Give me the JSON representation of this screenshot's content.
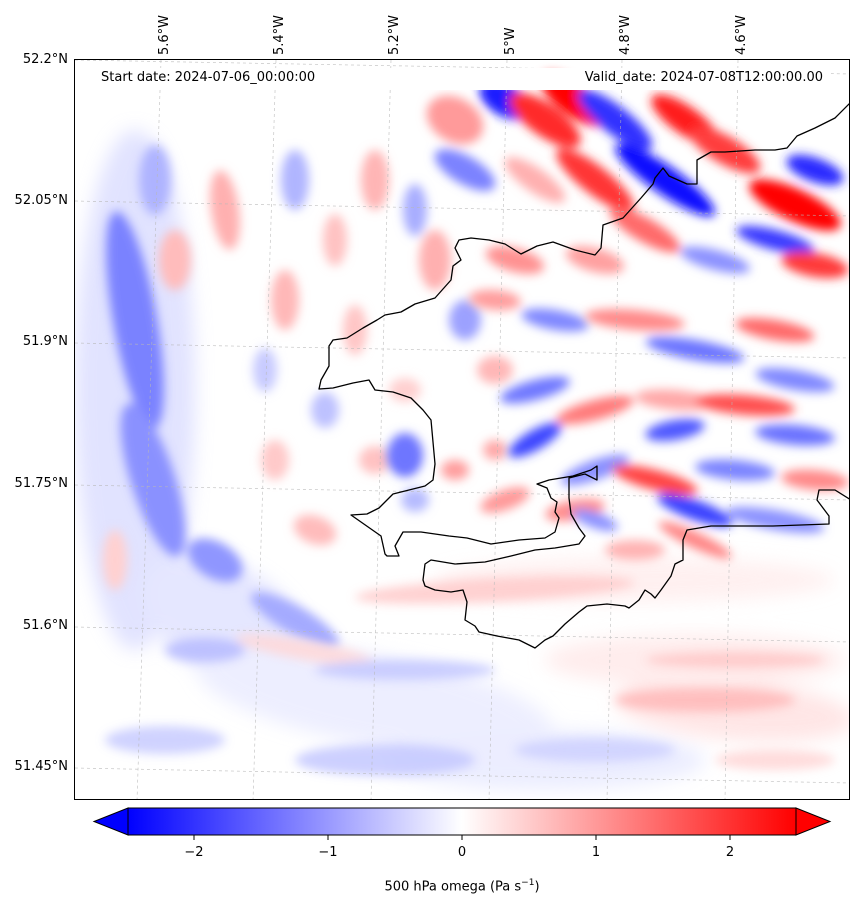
{
  "map": {
    "start_date": "Start date: 2024-07-06_00:00:00",
    "valid_date": "Valid_date: 2024-07-08T12:00:00.00",
    "longitude_labels": [
      "5.6°W",
      "5.4°W",
      "5.2°W",
      "5°W",
      "4.8°W",
      "4.6°W"
    ],
    "latitude_labels": [
      "52.2°N",
      "52.05°N",
      "51.9°N",
      "51.75°N",
      "51.6°N",
      "51.45°N"
    ],
    "field": "500 hPa omega",
    "colormap": "bwr",
    "colors": {
      "negative": "#0000ff",
      "zero": "#ffffff",
      "positive": "#ff0000",
      "coastline": "#000000",
      "grid": "#b0b0b0"
    }
  },
  "colorbar": {
    "ticks": [
      "−2",
      "−1",
      "0",
      "1",
      "2"
    ],
    "tick_values": [
      -2,
      -1,
      0,
      1,
      2
    ],
    "range": [
      -2.75,
      2.75
    ],
    "extend": "both",
    "label": "500 hPa omega (Pa s",
    "label_superscript": "−1",
    "label_close": ")"
  }
}
